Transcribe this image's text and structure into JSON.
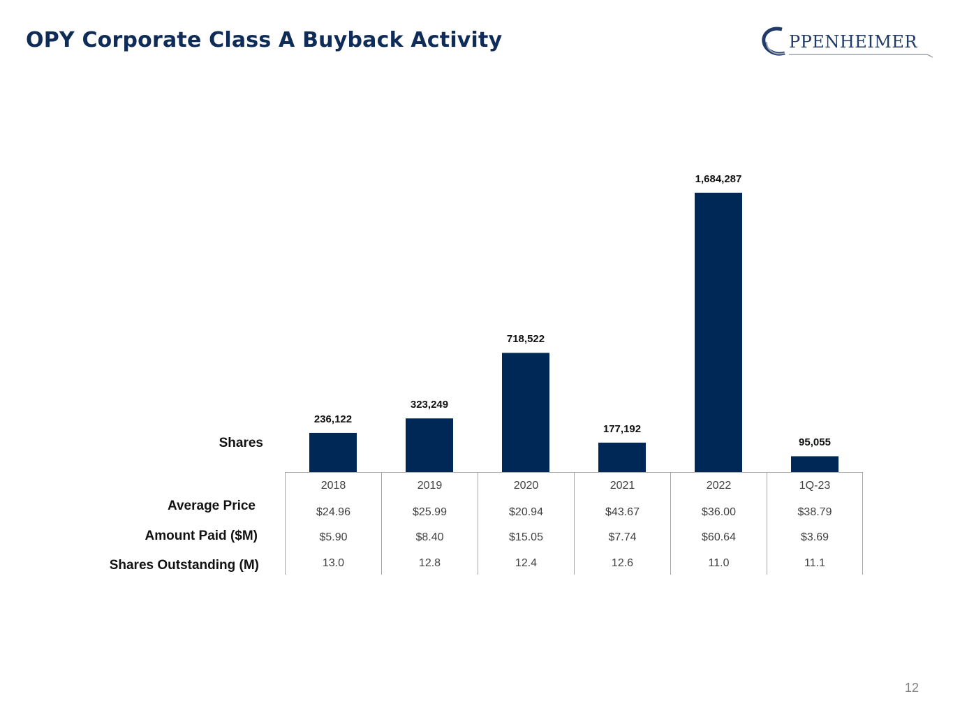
{
  "title": "OPY Corporate Class A Buyback Activity",
  "logo": {
    "text": "PPENHEIMER",
    "full_name": "OPPENHEIMER"
  },
  "page_number": "12",
  "colors": {
    "bar": "#002856",
    "title": "#0f2b57",
    "grid": "#a6a6a6"
  },
  "row_labels": {
    "shares": "Shares",
    "avg_price": "Average Price",
    "amount_paid": "Amount Paid ($M)",
    "shares_outstanding": "Shares Outstanding (M)"
  },
  "chart_data": {
    "type": "bar",
    "title": "OPY Corporate Class A Buyback Activity",
    "categories": [
      "2018",
      "2019",
      "2020",
      "2021",
      "2022",
      "1Q-23"
    ],
    "series": [
      {
        "name": "Shares",
        "values": [
          236122,
          323249,
          718522,
          177192,
          1684287,
          95055
        ]
      }
    ],
    "data_labels": [
      "236,122",
      "323,249",
      "718,522",
      "177,192",
      "1,684,287",
      "95,055"
    ],
    "ylim": [
      0,
      1684287
    ],
    "grid": false,
    "table": {
      "average_price": [
        "$24.96",
        "$25.99",
        "$20.94",
        "$43.67",
        "$36.00",
        "$38.79"
      ],
      "amount_paid": [
        "$5.90",
        "$8.40",
        "$15.05",
        "$7.74",
        "$60.64",
        "$3.69"
      ],
      "shares_outstanding": [
        "13.0",
        "12.8",
        "12.4",
        "12.6",
        "11.0",
        "11.1"
      ]
    }
  }
}
